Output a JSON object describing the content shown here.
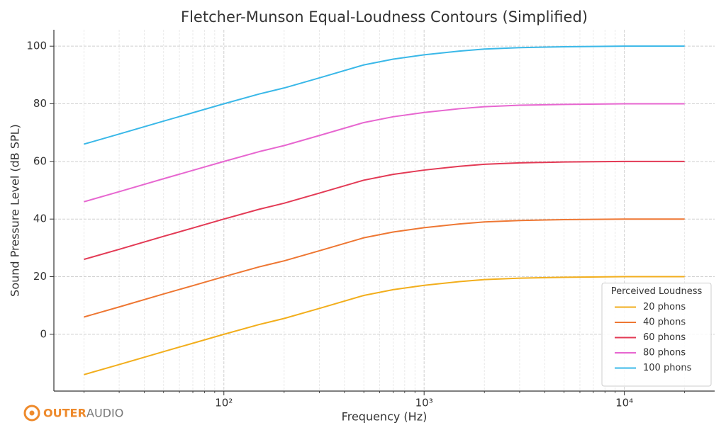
{
  "chart_data": {
    "type": "line",
    "title": "Fletcher-Munson Equal-Loudness Contours (Simplified)",
    "xlabel": "Frequency (Hz)",
    "ylabel": "Sound Pressure Level (dB SPL)",
    "x": [
      20,
      30,
      50,
      70,
      100,
      150,
      200,
      300,
      500,
      700,
      1000,
      1500,
      2000,
      3000,
      5000,
      10000,
      20000
    ],
    "series": [
      {
        "name": "20 phons",
        "color": "#f2ae1c",
        "values": [
          -14,
          -10.5,
          -6,
          -3.1,
          0,
          3.4,
          5.5,
          9,
          13.5,
          15.5,
          17,
          18.3,
          19,
          19.5,
          19.8,
          20,
          20
        ]
      },
      {
        "name": "40 phons",
        "color": "#ee7733",
        "values": [
          6,
          9.5,
          14,
          16.9,
          20,
          23.4,
          25.5,
          29,
          33.5,
          35.5,
          37,
          38.3,
          39,
          39.5,
          39.8,
          40,
          40
        ]
      },
      {
        "name": "60 phons",
        "color": "#e33a55",
        "values": [
          26,
          29.5,
          34,
          36.9,
          40,
          43.4,
          45.5,
          49,
          53.5,
          55.5,
          57,
          58.3,
          59,
          59.5,
          59.8,
          60,
          60
        ]
      },
      {
        "name": "80 phons",
        "color": "#e766d0",
        "values": [
          46,
          49.5,
          54,
          56.9,
          60,
          63.4,
          65.5,
          69,
          73.5,
          75.5,
          77,
          78.3,
          79,
          79.5,
          79.8,
          80,
          80
        ]
      },
      {
        "name": "100 phons",
        "color": "#3ab8e8",
        "values": [
          66,
          69.5,
          74,
          76.9,
          80,
          83.4,
          85.5,
          89,
          93.5,
          95.5,
          97,
          98.3,
          99,
          99.5,
          99.8,
          100,
          100
        ]
      }
    ],
    "xscale": "log",
    "xlim": [
      14.16,
      28250
    ],
    "ylim": [
      -19.7,
      105.7
    ],
    "xticks": [
      {
        "value": 100,
        "label": "10²"
      },
      {
        "value": 1000,
        "label": "10³"
      },
      {
        "value": 10000,
        "label": "10⁴"
      }
    ],
    "xminorticks": [
      20,
      30,
      40,
      50,
      60,
      70,
      80,
      90,
      200,
      300,
      400,
      500,
      600,
      700,
      800,
      900,
      2000,
      3000,
      4000,
      5000,
      6000,
      7000,
      8000,
      9000,
      20000
    ],
    "yticks": [
      0,
      20,
      40,
      60,
      80,
      100
    ],
    "grid": true,
    "legend": "lower right",
    "legend_title": "Perceived Loudness",
    "logo": {
      "brand": "OUTER",
      "product": "AUDIO"
    }
  }
}
